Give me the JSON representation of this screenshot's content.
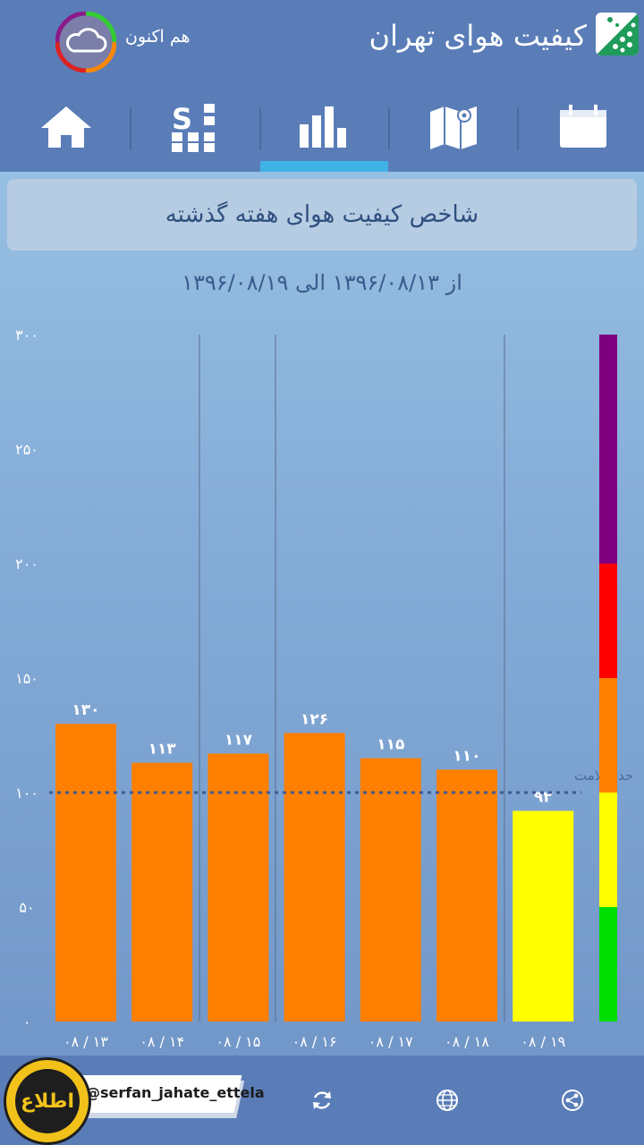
{
  "header": {
    "app_title": "کیفیت هوای تهران",
    "now_label": "هم اکنون",
    "now_icon": "cloud-icon"
  },
  "tabs": [
    {
      "name": "home",
      "icon": "home-icon"
    },
    {
      "name": "stations",
      "icon": "stations-grid-icon"
    },
    {
      "name": "chart",
      "icon": "bar-chart-icon",
      "active": true
    },
    {
      "name": "map",
      "icon": "map-pin-icon"
    },
    {
      "name": "calendar",
      "icon": "calendar-icon"
    }
  ],
  "title_card": "شاخص کیفیت هوای هفته گذشته",
  "date_range": "از ۱۳۹۶/۰۸/۱۳ الی ۱۳۹۶/۰۸/۱۹",
  "chart_data": {
    "type": "bar",
    "categories": [
      "۰۸ / ۱۳",
      "۰۸ / ۱۴",
      "۰۸ / ۱۵",
      "۰۸ / ۱۶",
      "۰۸ / ۱۷",
      "۰۸ / ۱۸",
      "۰۸ / ۱۹"
    ],
    "values": [
      130,
      113,
      117,
      126,
      115,
      110,
      92
    ],
    "value_labels": [
      "۱۳۰",
      "۱۱۳",
      "۱۱۷",
      "۱۲۶",
      "۱۱۵",
      "۱۱۰",
      "۹۲"
    ],
    "bar_colors": [
      "#ff7f00",
      "#ff7f00",
      "#ff7f00",
      "#ff7f00",
      "#ff7f00",
      "#ff7f00",
      "#ffff00"
    ],
    "ylim": [
      0,
      300
    ],
    "y_ticks": [
      0,
      50,
      100,
      150,
      200,
      250,
      300
    ],
    "y_tick_labels": [
      "۰",
      "۵۰",
      "۱۰۰",
      "۱۵۰",
      "۲۰۰",
      "۲۵۰",
      "۳۰۰"
    ],
    "health_threshold": 100,
    "health_threshold_label": "حد سلامت",
    "scale_bands": [
      {
        "from": 0,
        "to": 50,
        "color": "#00dd00"
      },
      {
        "from": 50,
        "to": 100,
        "color": "#ffff00"
      },
      {
        "from": 100,
        "to": 150,
        "color": "#ff7f00"
      },
      {
        "from": 150,
        "to": 200,
        "color": "#ff0000"
      },
      {
        "from": 200,
        "to": 300,
        "color": "#7e0080"
      }
    ]
  },
  "bottom_bar": {
    "watermark": "@serfan_jahate_ettela",
    "watermark_logo_text": "اطلاع",
    "icons": [
      "refresh-icon",
      "globe-icon",
      "share-icon"
    ]
  }
}
